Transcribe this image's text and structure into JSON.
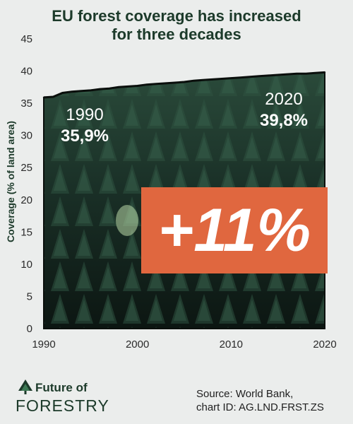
{
  "title_lines": [
    "EU forest coverage has increased",
    "for three decades"
  ],
  "chart_data": {
    "type": "area",
    "title": "EU forest coverage has increased for three decades",
    "ylabel": "Coverage (% of land area)",
    "xlabel": "",
    "xlim": [
      1990,
      2020
    ],
    "ylim": [
      0,
      45
    ],
    "x_ticks": [
      "1990",
      "2000",
      "2010",
      "2020"
    ],
    "y_ticks": [
      "0",
      "5",
      "10",
      "15",
      "20",
      "25",
      "30",
      "35",
      "40",
      "45"
    ],
    "x": [
      1990,
      1991,
      1992,
      1993,
      1994,
      1995,
      1996,
      1997,
      1998,
      1999,
      2000,
      2001,
      2002,
      2003,
      2004,
      2005,
      2006,
      2007,
      2008,
      2009,
      2010,
      2011,
      2012,
      2013,
      2014,
      2015,
      2016,
      2017,
      2018,
      2019,
      2020
    ],
    "values": [
      35.9,
      36.0,
      36.6,
      36.8,
      36.9,
      37.0,
      37.2,
      37.3,
      37.5,
      37.6,
      37.7,
      37.9,
      38.0,
      38.1,
      38.2,
      38.3,
      38.5,
      38.6,
      38.7,
      38.8,
      38.9,
      39.0,
      39.1,
      39.2,
      39.3,
      39.4,
      39.5,
      39.6,
      39.6,
      39.7,
      39.8
    ],
    "grid": false,
    "annotations": [
      {
        "year_label": "1990",
        "value_label": "35,9%"
      },
      {
        "year_label": "2020",
        "value_label": "39,8%"
      }
    ],
    "highlight": "+11%"
  },
  "logo": {
    "line1": "Future of",
    "line2": "FORESTRY",
    "icon": "tree-icon"
  },
  "source_lines": [
    "Source: World Bank,",
    "chart ID: AG.LND.FRST.ZS"
  ],
  "colors": {
    "background": "#ebedec",
    "forest_dark": "#0f1c17",
    "forest_mid": "#1f3a2e",
    "highlight": "#e0673f",
    "title": "#1c3a2a"
  }
}
